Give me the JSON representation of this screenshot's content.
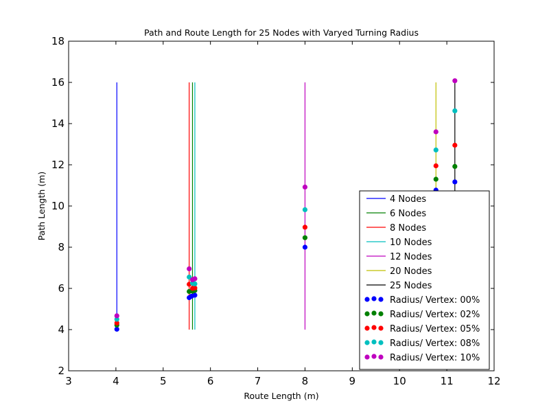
{
  "chart_data": {
    "type": "scatter",
    "title": "Path and Route Length for 25 Nodes with Varyed Turning Radius",
    "xlabel": "Route Length (m)",
    "ylabel": "Path Length (m)",
    "xlim": [
      3,
      12
    ],
    "ylim": [
      2,
      18
    ],
    "xticks": [
      "3",
      "4",
      "5",
      "6",
      "7",
      "8",
      "9",
      "10",
      "11",
      "12"
    ],
    "yticks": [
      "2",
      "4",
      "6",
      "8",
      "10",
      "12",
      "14",
      "16",
      "18"
    ],
    "grid": false,
    "legend_position": "lower-right",
    "lines": [
      {
        "name": "4 Nodes",
        "color": "#0000ff",
        "x": 4.02,
        "y_range": [
          4,
          16
        ]
      },
      {
        "name": "6 Nodes",
        "color": "#008000",
        "x": 5.62,
        "y_range": [
          4,
          16
        ]
      },
      {
        "name": "8 Nodes",
        "color": "#ff0000",
        "x": 5.55,
        "y_range": [
          4,
          16
        ]
      },
      {
        "name": "10 Nodes",
        "color": "#00bfbf",
        "x": 5.67,
        "y_range": [
          4,
          16
        ]
      },
      {
        "name": "12 Nodes",
        "color": "#bf00bf",
        "x": 8.0,
        "y_range": [
          4,
          16
        ]
      },
      {
        "name": "20 Nodes",
        "color": "#bfbf00",
        "x": 10.77,
        "y_range": [
          10.7,
          16
        ]
      },
      {
        "name": "25 Nodes",
        "color": "#000000",
        "x": 11.17,
        "y_range": [
          10.7,
          16
        ]
      }
    ],
    "series": [
      {
        "name": "Radius/ Vertex: 00%",
        "color": "#0000ff",
        "points": [
          [
            4.02,
            4.02
          ],
          [
            5.55,
            5.55
          ],
          [
            5.6,
            5.62
          ],
          [
            5.67,
            5.67
          ],
          [
            8.0,
            8.0
          ],
          [
            10.77,
            10.77
          ],
          [
            11.17,
            11.17
          ]
        ]
      },
      {
        "name": "Radius/ Vertex: 02%",
        "color": "#008000",
        "points": [
          [
            4.02,
            4.22
          ],
          [
            5.55,
            5.85
          ],
          [
            5.62,
            5.87
          ],
          [
            5.67,
            5.9
          ],
          [
            8.0,
            8.46
          ],
          [
            10.77,
            11.3
          ],
          [
            11.17,
            11.92
          ]
        ]
      },
      {
        "name": "Radius/ Vertex: 05%",
        "color": "#ff0000",
        "points": [
          [
            4.02,
            4.32
          ],
          [
            5.55,
            6.2
          ],
          [
            5.62,
            6.0
          ],
          [
            5.67,
            6.02
          ],
          [
            8.0,
            8.97
          ],
          [
            10.77,
            11.95
          ],
          [
            11.17,
            12.95
          ]
        ]
      },
      {
        "name": "Radius/ Vertex: 08%",
        "color": "#00bfbf",
        "points": [
          [
            4.02,
            4.5
          ],
          [
            5.55,
            6.55
          ],
          [
            5.62,
            6.25
          ],
          [
            5.67,
            6.22
          ],
          [
            8.0,
            9.82
          ],
          [
            10.77,
            12.72
          ],
          [
            11.17,
            14.62
          ]
        ]
      },
      {
        "name": "Radius/ Vertex: 10%",
        "color": "#bf00bf",
        "points": [
          [
            4.02,
            4.67
          ],
          [
            5.55,
            6.95
          ],
          [
            5.62,
            6.42
          ],
          [
            5.67,
            6.47
          ],
          [
            8.0,
            10.92
          ],
          [
            10.77,
            13.6
          ],
          [
            11.17,
            16.08
          ]
        ]
      }
    ]
  }
}
